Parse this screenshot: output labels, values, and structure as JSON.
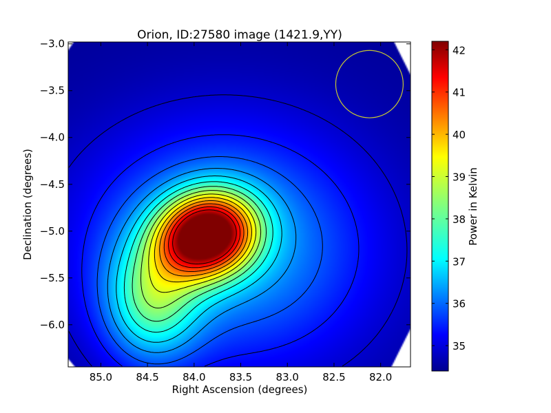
{
  "chart_data": {
    "type": "heatmap",
    "title": "Orion, ID:27580 image (1421.9,YY)",
    "xlabel": "Right Ascension (degrees)",
    "ylabel": "Declination (degrees)",
    "xlim": [
      85.35,
      81.68
    ],
    "ylim": [
      -6.45,
      -2.98
    ],
    "x_ticks": [
      {
        "value": 85.0,
        "label": "85.0"
      },
      {
        "value": 84.5,
        "label": "84.5"
      },
      {
        "value": 84.0,
        "label": "84.0"
      },
      {
        "value": 83.5,
        "label": "83.5"
      },
      {
        "value": 83.0,
        "label": "83.0"
      },
      {
        "value": 82.5,
        "label": "82.5"
      },
      {
        "value": 82.0,
        "label": "82.0"
      }
    ],
    "y_ticks": [
      {
        "value": -3.0,
        "label": "−3.0"
      },
      {
        "value": -3.5,
        "label": "−3.5"
      },
      {
        "value": -4.0,
        "label": "−4.0"
      },
      {
        "value": -4.5,
        "label": "−4.5"
      },
      {
        "value": -5.0,
        "label": "−5.0"
      },
      {
        "value": -5.5,
        "label": "−5.5"
      },
      {
        "value": -6.0,
        "label": "−6.0"
      }
    ],
    "colorbar": {
      "label": "Power in Kelvin",
      "range": [
        34.4,
        42.2
      ],
      "colormap": "jet",
      "ticks": [
        {
          "value": 35,
          "label": "35"
        },
        {
          "value": 36,
          "label": "36"
        },
        {
          "value": 37,
          "label": "37"
        },
        {
          "value": 38,
          "label": "38"
        },
        {
          "value": 39,
          "label": "39"
        },
        {
          "value": 40,
          "label": "40"
        },
        {
          "value": 41,
          "label": "41"
        },
        {
          "value": 42,
          "label": "42"
        }
      ]
    },
    "peak": {
      "ra": 83.87,
      "dec": -5.04,
      "value": 42.1
    },
    "contour_levels_approx": [
      35.0,
      35.5,
      36.0,
      36.5,
      37.0,
      37.5,
      38.0,
      38.5,
      39.0,
      39.5,
      40.0,
      40.5,
      41.0,
      41.5
    ],
    "annotations": [
      {
        "type": "circle",
        "ra": 82.12,
        "dec": -3.43,
        "radius_deg": 0.36,
        "color": "#c8c832"
      }
    ],
    "grid": false,
    "legend": "none"
  }
}
